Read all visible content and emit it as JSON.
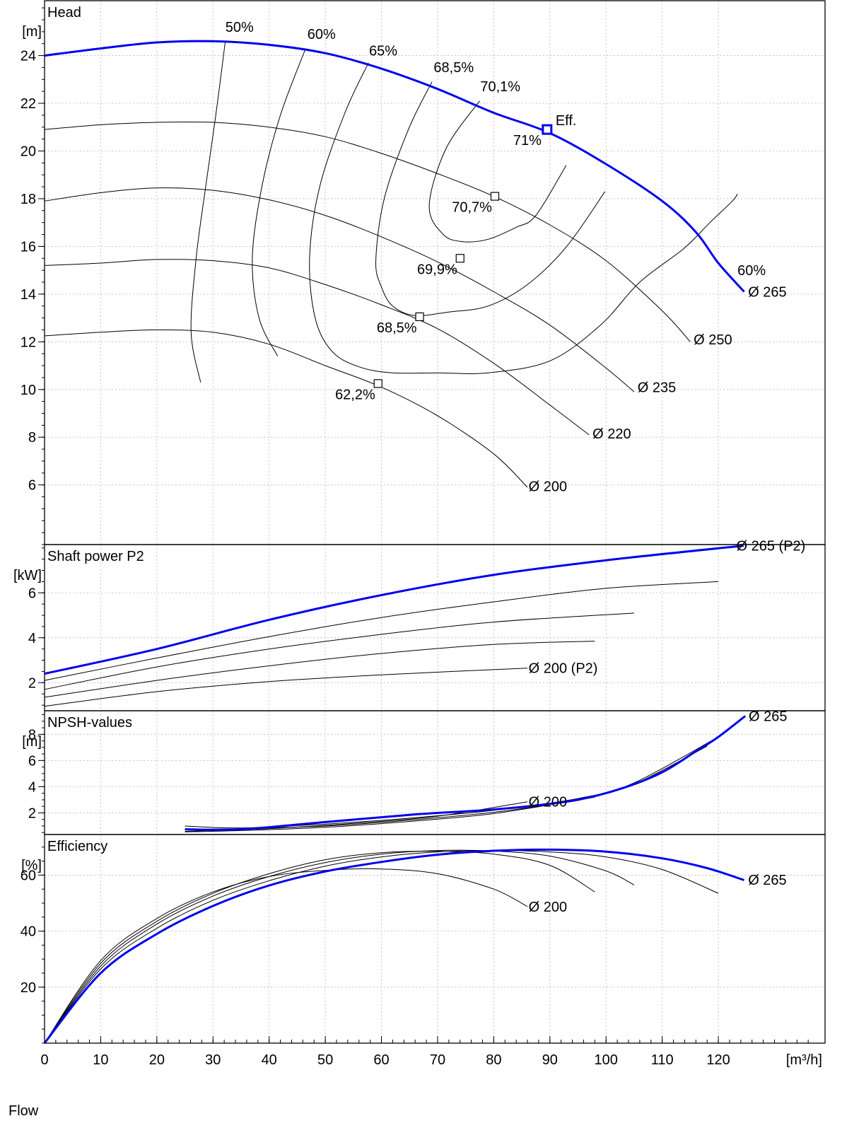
{
  "colors": {
    "highlight": "#0000ee",
    "other": "#000000"
  },
  "xaxis": {
    "ticks": [
      0,
      10,
      20,
      30,
      40,
      50,
      60,
      70,
      80,
      90,
      100,
      110,
      120
    ],
    "unit": "[m³/h]",
    "range": [
      0,
      139
    ]
  },
  "xaxis_title": "Flow",
  "chart_data": [
    {
      "type": "line",
      "title": "Head",
      "ylabel": "[m]",
      "ylim": [
        3.5,
        26.3
      ],
      "yticks": [
        6,
        8,
        10,
        12,
        14,
        16,
        18,
        20,
        22,
        24
      ],
      "grid": true,
      "series": [
        {
          "name": "Ø 265",
          "highlight": true,
          "x": [
            0,
            10,
            20,
            30,
            40,
            50,
            60,
            70,
            80,
            90,
            100,
            110,
            116,
            120,
            124.6
          ],
          "y": [
            24,
            24.3,
            24.55,
            24.6,
            24.45,
            24.1,
            23.45,
            22.6,
            21.6,
            20.75,
            19.45,
            17.9,
            16.6,
            15.3,
            14.1
          ]
        },
        {
          "name": "Ø 250",
          "x": [
            0,
            10,
            20,
            30,
            40,
            50,
            60,
            70,
            80,
            90,
            100,
            110,
            115
          ],
          "y": [
            20.9,
            21.1,
            21.2,
            21.2,
            21,
            20.6,
            19.9,
            19.05,
            18.1,
            16.9,
            15.4,
            13.3,
            12.0
          ]
        },
        {
          "name": "Ø 235",
          "x": [
            0,
            10,
            20,
            30,
            40,
            50,
            60,
            70,
            80,
            90,
            100,
            105
          ],
          "y": [
            17.9,
            18.25,
            18.45,
            18.35,
            17.95,
            17.3,
            16.4,
            15.35,
            14.1,
            12.7,
            10.9,
            9.9
          ]
        },
        {
          "name": "Ø 220",
          "x": [
            0,
            10,
            20,
            30,
            40,
            50,
            60,
            70,
            80,
            90,
            97
          ],
          "y": [
            15.2,
            15.3,
            15.45,
            15.4,
            15.1,
            14.4,
            13.55,
            12.55,
            11.1,
            9.35,
            8.1
          ]
        },
        {
          "name": "Ø 200",
          "x": [
            0,
            10,
            20,
            30,
            40,
            50,
            60,
            70,
            80,
            86
          ],
          "y": [
            12.25,
            12.4,
            12.5,
            12.4,
            11.9,
            11.0,
            10.1,
            8.9,
            7.3,
            5.9
          ]
        }
      ],
      "curve_labels": [
        {
          "text": "Ø 265",
          "x": 125.3,
          "y": 14.1,
          "highlight": true
        },
        {
          "text": "Ø 250",
          "x": 115.6,
          "y": 12.1
        },
        {
          "text": "Ø 235",
          "x": 105.6,
          "y": 10.1
        },
        {
          "text": "Ø 220",
          "x": 97.6,
          "y": 8.15
        },
        {
          "text": "Ø 200",
          "x": 86.2,
          "y": 5.95
        }
      ],
      "efficiency_contours": [
        {
          "label": "50%",
          "x": [
            32.2,
            30.5,
            28.7,
            27.0,
            26.1,
            27.8
          ],
          "y": [
            24.6,
            21.5,
            18.5,
            15.5,
            12.4,
            10.3
          ]
        },
        {
          "label": "60%",
          "x": [
            46.5,
            42.0,
            38.7,
            37.0,
            38.2,
            41.5
          ],
          "y": [
            24.3,
            21.5,
            18.5,
            15.5,
            13.0,
            11.4
          ]
        },
        {
          "label": "65%",
          "x": [
            57.7,
            53.5,
            49.0,
            47.2,
            48.2,
            51.2,
            56,
            62,
            70,
            79,
            90,
            99,
            106,
            113.8,
            118.5,
            122.5,
            123.4
          ],
          "y": [
            23.7,
            21.6,
            18.5,
            15.5,
            13.0,
            11.6,
            10.95,
            10.7,
            10.7,
            10.7,
            11.2,
            12.7,
            14.5,
            15.9,
            17.0,
            17.9,
            18.2
          ]
        },
        {
          "label": "68,5%",
          "x": [
            69.0,
            64.8,
            60.5,
            59.0,
            60,
            62,
            66,
            72,
            79,
            86,
            93,
            99.8
          ],
          "y": [
            22.9,
            20.9,
            18.0,
            15.4,
            14.3,
            13.5,
            13.1,
            13.25,
            13.5,
            14.4,
            16.0,
            18.3
          ]
        },
        {
          "label": "70,1%",
          "x": [
            77.5,
            71.5,
            68.5,
            71.0,
            74.5,
            79,
            84,
            87.5,
            92.9
          ],
          "y": [
            22.1,
            20.1,
            17.7,
            16.5,
            16.2,
            16.3,
            16.8,
            17.3,
            19.4
          ]
        }
      ],
      "contour_labels": [
        {
          "text": "50%",
          "x": 32.2,
          "y": 25.0
        },
        {
          "text": "60%",
          "x": 46.8,
          "y": 24.7
        },
        {
          "text": "65%",
          "x": 57.8,
          "y": 24.0
        },
        {
          "text": "68,5%",
          "x": 69.3,
          "y": 23.3
        },
        {
          "text": "70,1%",
          "x": 77.6,
          "y": 22.5
        },
        {
          "text": "60%",
          "x": 123.4,
          "y": 14.8
        }
      ],
      "bep_points": [
        {
          "label": "70,7%",
          "x": 80.2,
          "y": 18.1
        },
        {
          "label": "69,9%",
          "x": 74.0,
          "y": 15.5
        },
        {
          "label": "68,5%",
          "x": 66.8,
          "y": 13.05
        },
        {
          "label": "62,2%",
          "x": 59.4,
          "y": 10.25
        }
      ],
      "operating_point": {
        "label": "Eff.",
        "value_label": "71%",
        "x": 89.5,
        "y": 20.9
      }
    },
    {
      "type": "line",
      "title": "Shaft power P2",
      "ylabel": "[kW]",
      "ylim": [
        0.75,
        8.15
      ],
      "yticks": [
        2,
        4,
        6
      ],
      "grid": true,
      "series": [
        {
          "name": "Ø 265 (P2)",
          "highlight": true,
          "x": [
            0,
            20,
            40,
            60,
            80,
            100,
            124.5
          ],
          "y": [
            2.4,
            3.5,
            4.8,
            5.9,
            6.8,
            7.45,
            8.1
          ]
        },
        {
          "name": "",
          "x": [
            0,
            20,
            40,
            60,
            80,
            100,
            120
          ],
          "y": [
            2.1,
            3.1,
            4.05,
            4.9,
            5.6,
            6.2,
            6.5
          ]
        },
        {
          "name": "",
          "x": [
            0,
            20,
            40,
            60,
            80,
            105
          ],
          "y": [
            1.7,
            2.7,
            3.5,
            4.15,
            4.7,
            5.1
          ]
        },
        {
          "name": "",
          "x": [
            0,
            20,
            40,
            60,
            80,
            98
          ],
          "y": [
            1.35,
            2.1,
            2.75,
            3.3,
            3.7,
            3.85
          ]
        },
        {
          "name": "Ø 200 (P2)",
          "x": [
            0,
            20,
            40,
            60,
            86
          ],
          "y": [
            0.95,
            1.6,
            2.05,
            2.35,
            2.65
          ]
        }
      ],
      "curve_labels": [
        {
          "text": "Ø 265 (P2)",
          "x": 123.2,
          "y": 8.1,
          "highlight": true
        },
        {
          "text": "Ø 200 (P2)",
          "x": 86.2,
          "y": 2.65
        }
      ]
    },
    {
      "type": "line",
      "title": "NPSH-values",
      "ylabel": "[m]",
      "ylim": [
        0.35,
        9.8
      ],
      "yticks": [
        2,
        4,
        6,
        8
      ],
      "grid": true,
      "series": [
        {
          "name": "Ø 265",
          "highlight": true,
          "x": [
            25,
            35,
            50,
            65,
            78,
            86,
            95,
            103,
            110,
            116,
            120,
            124.8
          ],
          "y": [
            0.75,
            0.75,
            1.3,
            1.85,
            2.2,
            2.5,
            3.0,
            3.9,
            5.1,
            6.7,
            7.8,
            9.4
          ]
        },
        {
          "name": "",
          "x": [
            25,
            35,
            50,
            65,
            80,
            95,
            105,
            120
          ],
          "y": [
            1.0,
            0.85,
            1.15,
            1.6,
            2.2,
            3.1,
            4.3,
            7.8
          ]
        },
        {
          "name": "",
          "x": [
            25,
            35,
            50,
            65,
            80,
            95,
            105,
            118
          ],
          "y": [
            0.75,
            0.8,
            1.0,
            1.45,
            2.05,
            3.0,
            4.2,
            7.1
          ]
        },
        {
          "name": "",
          "x": [
            25,
            35,
            50,
            65,
            80,
            98
          ],
          "y": [
            0.55,
            0.65,
            0.9,
            1.35,
            1.95,
            3.2
          ]
        },
        {
          "name": "Ø 200",
          "x": [
            25,
            40,
            55,
            70,
            86
          ],
          "y": [
            0.6,
            0.8,
            1.2,
            1.75,
            2.85
          ]
        }
      ],
      "curve_labels": [
        {
          "text": "Ø 265",
          "x": 125.4,
          "y": 9.4,
          "highlight": true
        },
        {
          "text": "Ø 200",
          "x": 86.2,
          "y": 2.85
        }
      ]
    },
    {
      "type": "line",
      "title": "Efficiency",
      "ylabel": "[%]",
      "ylim": [
        0,
        74.5
      ],
      "yticks": [
        20,
        40,
        60
      ],
      "grid": true,
      "series": [
        {
          "name": "Ø 265",
          "highlight": true,
          "x": [
            0,
            10,
            20,
            30,
            40,
            50,
            60,
            70,
            80,
            90,
            100,
            110,
            118,
            124.6
          ],
          "y": [
            0,
            25,
            39,
            49,
            56.3,
            61.3,
            64.7,
            67.3,
            68.7,
            69.1,
            68.4,
            66,
            62.5,
            58.2
          ]
        },
        {
          "name": "",
          "x": [
            0,
            10,
            20,
            30,
            40,
            50,
            60,
            70,
            80,
            90,
            100,
            110,
            120
          ],
          "y": [
            0,
            26.5,
            41,
            51,
            58,
            63.2,
            66.5,
            68.3,
            68.8,
            68.3,
            66.5,
            62,
            53.5
          ]
        },
        {
          "name": "",
          "x": [
            0,
            10,
            20,
            30,
            40,
            50,
            60,
            70,
            80,
            90,
            100,
            105
          ],
          "y": [
            0,
            27.5,
            42.5,
            52.5,
            59.5,
            64.5,
            67.5,
            68.8,
            68.6,
            66.8,
            61.5,
            56.5
          ]
        },
        {
          "name": "",
          "x": [
            0,
            10,
            20,
            30,
            40,
            50,
            60,
            70,
            80,
            90,
            98
          ],
          "y": [
            0,
            28.5,
            43.5,
            53.5,
            60.5,
            65.5,
            68,
            68.5,
            67.5,
            63.5,
            54
          ]
        },
        {
          "name": "Ø 200",
          "x": [
            0,
            10,
            20,
            30,
            40,
            50,
            60,
            70,
            80,
            86
          ],
          "y": [
            0,
            29.5,
            44.5,
            54,
            59.5,
            61.7,
            62.2,
            60.5,
            55,
            48.8
          ]
        }
      ],
      "curve_labels": [
        {
          "text": "Ø 265",
          "x": 125.3,
          "y": 58.3,
          "highlight": true
        },
        {
          "text": "Ø 200",
          "x": 86.2,
          "y": 48.8
        }
      ]
    }
  ]
}
